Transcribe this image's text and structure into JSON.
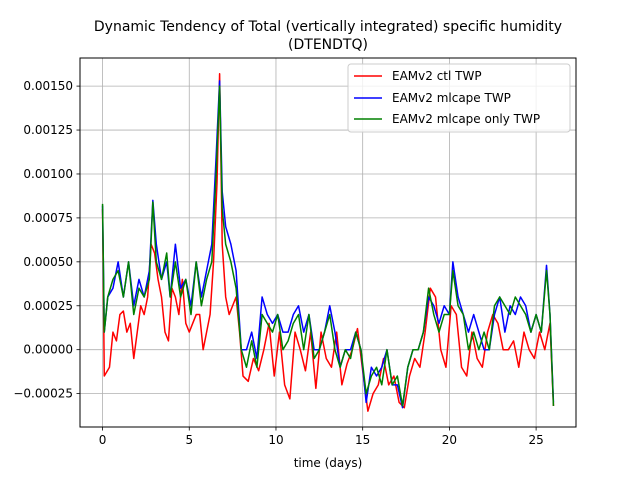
{
  "chart_data": {
    "type": "line",
    "title": "Dynamic Tendency of Total (vertically integrated) specific humidity",
    "subtitle": "(DTENDTQ)",
    "xlabel": "time (days)",
    "ylabel": "",
    "xlim": [
      -1.3,
      27.3
    ],
    "ylim": [
      -0.00044,
      0.00166
    ],
    "xticks": [
      0,
      5,
      10,
      15,
      20,
      25
    ],
    "xtick_labels": [
      "0",
      "5",
      "10",
      "15",
      "20",
      "25"
    ],
    "yticks": [
      -0.00025,
      0,
      0.00025,
      0.0005,
      0.00075,
      0.001,
      0.00125,
      0.0015
    ],
    "ytick_labels": [
      "−0.00025",
      "0.00000",
      "0.00025",
      "0.00050",
      "0.00075",
      "0.00100",
      "0.00125",
      "0.00150"
    ],
    "grid": true,
    "legend_position": "top-right",
    "series": [
      {
        "name": "EAMv2 ctl TWP",
        "color": "#ff0000",
        "points": [
          [
            0,
            0.0008
          ],
          [
            0.1,
            -0.00015
          ],
          [
            0.4,
            -0.0001
          ],
          [
            0.6,
            0.0001
          ],
          [
            0.8,
            5e-05
          ],
          [
            1.0,
            0.0002
          ],
          [
            1.2,
            0.00022
          ],
          [
            1.4,
            0.0001
          ],
          [
            1.6,
            0.00015
          ],
          [
            1.8,
            -5e-05
          ],
          [
            2.0,
            0.0001
          ],
          [
            2.2,
            0.00025
          ],
          [
            2.4,
            0.0002
          ],
          [
            2.6,
            0.0003
          ],
          [
            2.8,
            0.0006
          ],
          [
            3.0,
            0.00055
          ],
          [
            3.2,
            0.0004
          ],
          [
            3.4,
            0.0003
          ],
          [
            3.6,
            0.0001
          ],
          [
            3.8,
            5e-05
          ],
          [
            4.0,
            0.00035
          ],
          [
            4.2,
            0.0003
          ],
          [
            4.4,
            0.0002
          ],
          [
            4.6,
            0.0004
          ],
          [
            4.8,
            0.00015
          ],
          [
            5.0,
            0.0001
          ],
          [
            5.2,
            0.00015
          ],
          [
            5.4,
            0.0002
          ],
          [
            5.6,
            0.0002
          ],
          [
            5.8,
            0.0
          ],
          [
            6.0,
            0.0001
          ],
          [
            6.2,
            0.0002
          ],
          [
            6.4,
            0.0005
          ],
          [
            6.6,
            0.00095
          ],
          [
            6.75,
            0.00157
          ],
          [
            6.9,
            0.0006
          ],
          [
            7.1,
            0.0003
          ],
          [
            7.3,
            0.0002
          ],
          [
            7.5,
            0.00025
          ],
          [
            7.7,
            0.0003
          ],
          [
            7.9,
            0.0001
          ],
          [
            8.1,
            -0.00015
          ],
          [
            8.4,
            -0.00018
          ],
          [
            8.7,
            -5e-05
          ],
          [
            9.0,
            -0.00012
          ],
          [
            9.3,
            0.0
          ],
          [
            9.6,
            0.00015
          ],
          [
            9.9,
            -0.00015
          ],
          [
            10.2,
            0.0001
          ],
          [
            10.5,
            -0.0002
          ],
          [
            10.8,
            -0.00028
          ],
          [
            11.1,
            0.0001
          ],
          [
            11.4,
            0.0
          ],
          [
            11.7,
            -0.00012
          ],
          [
            12.0,
            0.0001
          ],
          [
            12.3,
            -0.00022
          ],
          [
            12.6,
            0.0001
          ],
          [
            12.9,
            -5e-05
          ],
          [
            13.2,
            -0.0001
          ],
          [
            13.5,
            0.0001
          ],
          [
            13.8,
            -0.0002
          ],
          [
            14.1,
            -8e-05
          ],
          [
            14.4,
            0.0
          ],
          [
            14.7,
            0.00012
          ],
          [
            15.0,
            -0.00012
          ],
          [
            15.3,
            -0.00035
          ],
          [
            15.6,
            -0.00025
          ],
          [
            15.9,
            -0.0002
          ],
          [
            16.2,
            -5e-05
          ],
          [
            16.5,
            -0.0002
          ],
          [
            16.8,
            -0.00015
          ],
          [
            17.1,
            -0.0003
          ],
          [
            17.4,
            -0.00033
          ],
          [
            17.7,
            -0.00015
          ],
          [
            18.0,
            -5e-05
          ],
          [
            18.3,
            -0.0001
          ],
          [
            18.6,
            0.0001
          ],
          [
            18.9,
            0.00035
          ],
          [
            19.2,
            0.0003
          ],
          [
            19.5,
            0.0
          ],
          [
            19.8,
            -0.0001
          ],
          [
            20.1,
            0.00025
          ],
          [
            20.4,
            0.0002
          ],
          [
            20.7,
            -0.0001
          ],
          [
            21.0,
            -0.00015
          ],
          [
            21.3,
            0.0001
          ],
          [
            21.6,
            -5e-05
          ],
          [
            21.9,
            -0.0001
          ],
          [
            22.2,
            0.0001
          ],
          [
            22.5,
            0.0002
          ],
          [
            22.8,
            0.00015
          ],
          [
            23.1,
            0.0
          ],
          [
            23.4,
            0.0
          ],
          [
            23.7,
            5e-05
          ],
          [
            24.0,
            -0.0001
          ],
          [
            24.3,
            0.0001
          ],
          [
            24.6,
            0.0
          ],
          [
            24.9,
            -5e-05
          ],
          [
            25.2,
            0.0001
          ],
          [
            25.5,
            0.0
          ],
          [
            25.8,
            0.00015
          ],
          [
            26.0,
            -0.00032
          ]
        ]
      },
      {
        "name": "EAMv2 mlcape TWP",
        "color": "#0000ff",
        "points": [
          [
            0,
            0.00082
          ],
          [
            0.1,
            0.0001
          ],
          [
            0.3,
            0.0003
          ],
          [
            0.6,
            0.00035
          ],
          [
            0.9,
            0.0005
          ],
          [
            1.2,
            0.0003
          ],
          [
            1.5,
            0.0005
          ],
          [
            1.8,
            0.00025
          ],
          [
            2.1,
            0.0004
          ],
          [
            2.4,
            0.0003
          ],
          [
            2.7,
            0.00045
          ],
          [
            2.9,
            0.00085
          ],
          [
            3.1,
            0.0006
          ],
          [
            3.4,
            0.0004
          ],
          [
            3.7,
            0.0005
          ],
          [
            3.9,
            0.0003
          ],
          [
            4.2,
            0.0006
          ],
          [
            4.5,
            0.00035
          ],
          [
            4.8,
            0.0004
          ],
          [
            5.1,
            0.00025
          ],
          [
            5.4,
            0.0005
          ],
          [
            5.7,
            0.0003
          ],
          [
            6.0,
            0.00045
          ],
          [
            6.3,
            0.0006
          ],
          [
            6.55,
            0.0011
          ],
          [
            6.75,
            0.00153
          ],
          [
            6.9,
            0.0009
          ],
          [
            7.1,
            0.0007
          ],
          [
            7.4,
            0.0006
          ],
          [
            7.7,
            0.00045
          ],
          [
            8.0,
            0.0
          ],
          [
            8.3,
            0.0
          ],
          [
            8.6,
            0.0001
          ],
          [
            8.9,
            -5e-05
          ],
          [
            9.2,
            0.0003
          ],
          [
            9.5,
            0.0002
          ],
          [
            9.8,
            0.00015
          ],
          [
            10.1,
            0.0002
          ],
          [
            10.4,
            0.0001
          ],
          [
            10.7,
            0.0001
          ],
          [
            11.0,
            0.0002
          ],
          [
            11.3,
            0.00025
          ],
          [
            11.6,
            0.0001
          ],
          [
            11.9,
            0.0002
          ],
          [
            12.2,
            0.0
          ],
          [
            12.5,
            0.0
          ],
          [
            12.8,
            0.0001
          ],
          [
            13.1,
            0.00025
          ],
          [
            13.4,
            0.0001
          ],
          [
            13.7,
            -0.0001
          ],
          [
            14.0,
            0.0
          ],
          [
            14.3,
            0.0
          ],
          [
            14.6,
            0.0001
          ],
          [
            14.9,
            0.0
          ],
          [
            15.2,
            -0.0003
          ],
          [
            15.5,
            -0.0001
          ],
          [
            15.8,
            -0.00015
          ],
          [
            16.1,
            -0.0001
          ],
          [
            16.4,
            0.0
          ],
          [
            16.7,
            -0.0002
          ],
          [
            17.0,
            -0.0002
          ],
          [
            17.3,
            -0.00033
          ],
          [
            17.6,
            -0.0001
          ],
          [
            17.9,
            0.0
          ],
          [
            18.2,
            0.0
          ],
          [
            18.5,
            0.0001
          ],
          [
            18.8,
            0.0003
          ],
          [
            19.1,
            0.00025
          ],
          [
            19.4,
            0.00015
          ],
          [
            19.7,
            0.00025
          ],
          [
            20.0,
            0.0002
          ],
          [
            20.2,
            0.0005
          ],
          [
            20.5,
            0.0003
          ],
          [
            20.8,
            0.0002
          ],
          [
            21.1,
            0.0001
          ],
          [
            21.4,
            0.0002
          ],
          [
            21.7,
            0.0001
          ],
          [
            22.0,
            0.0
          ],
          [
            22.3,
            0.0
          ],
          [
            22.6,
            0.0002
          ],
          [
            22.9,
            0.0003
          ],
          [
            23.2,
            0.0001
          ],
          [
            23.5,
            0.00025
          ],
          [
            23.8,
            0.0002
          ],
          [
            24.1,
            0.0003
          ],
          [
            24.4,
            0.00025
          ],
          [
            24.7,
            0.0001
          ],
          [
            25.0,
            0.0002
          ],
          [
            25.3,
            0.0001
          ],
          [
            25.6,
            0.00048
          ],
          [
            25.8,
            0.0002
          ],
          [
            26.0,
            -0.0003
          ]
        ]
      },
      {
        "name": "EAMv2 mlcape only TWP",
        "color": "#008000",
        "points": [
          [
            0,
            0.00083
          ],
          [
            0.1,
            0.0001
          ],
          [
            0.3,
            0.0003
          ],
          [
            0.6,
            0.0004
          ],
          [
            0.9,
            0.00045
          ],
          [
            1.2,
            0.0003
          ],
          [
            1.5,
            0.0005
          ],
          [
            1.8,
            0.0002
          ],
          [
            2.1,
            0.00035
          ],
          [
            2.4,
            0.0003
          ],
          [
            2.7,
            0.0004
          ],
          [
            2.9,
            0.00084
          ],
          [
            3.1,
            0.0005
          ],
          [
            3.4,
            0.0004
          ],
          [
            3.7,
            0.00055
          ],
          [
            3.9,
            0.0003
          ],
          [
            4.2,
            0.0005
          ],
          [
            4.5,
            0.0003
          ],
          [
            4.8,
            0.0004
          ],
          [
            5.1,
            0.0002
          ],
          [
            5.4,
            0.0005
          ],
          [
            5.7,
            0.00025
          ],
          [
            6.0,
            0.0004
          ],
          [
            6.3,
            0.0005
          ],
          [
            6.55,
            0.001
          ],
          [
            6.75,
            0.0015
          ],
          [
            6.9,
            0.0008
          ],
          [
            7.1,
            0.0006
          ],
          [
            7.4,
            0.0005
          ],
          [
            7.7,
            0.00035
          ],
          [
            8.0,
            0.0
          ],
          [
            8.3,
            -0.0001
          ],
          [
            8.6,
            5e-05
          ],
          [
            8.9,
            -0.0001
          ],
          [
            9.2,
            0.0002
          ],
          [
            9.5,
            0.00015
          ],
          [
            9.8,
            0.0001
          ],
          [
            10.1,
            0.0002
          ],
          [
            10.4,
            0.0
          ],
          [
            10.7,
            5e-05
          ],
          [
            11.0,
            0.00015
          ],
          [
            11.3,
            0.0002
          ],
          [
            11.6,
            0.0
          ],
          [
            11.9,
            0.0002
          ],
          [
            12.2,
            -5e-05
          ],
          [
            12.5,
            0.0
          ],
          [
            12.8,
            0.0001
          ],
          [
            13.1,
            0.0002
          ],
          [
            13.4,
            0.0
          ],
          [
            13.7,
            -0.0001
          ],
          [
            14.0,
            0.0
          ],
          [
            14.3,
            -5e-05
          ],
          [
            14.6,
            0.0001
          ],
          [
            14.9,
            0.0
          ],
          [
            15.2,
            -0.00025
          ],
          [
            15.5,
            -0.00015
          ],
          [
            15.8,
            -0.0001
          ],
          [
            16.1,
            -0.0002
          ],
          [
            16.4,
            0.0
          ],
          [
            16.7,
            -0.0002
          ],
          [
            17.0,
            -0.00015
          ],
          [
            17.3,
            -0.00032
          ],
          [
            17.6,
            -0.0001
          ],
          [
            17.9,
            0.0
          ],
          [
            18.2,
            0.0
          ],
          [
            18.5,
            0.0001
          ],
          [
            18.8,
            0.00035
          ],
          [
            19.1,
            0.0002
          ],
          [
            19.4,
            0.0001
          ],
          [
            19.7,
            0.0002
          ],
          [
            20.0,
            0.0002
          ],
          [
            20.2,
            0.00045
          ],
          [
            20.5,
            0.00025
          ],
          [
            20.8,
            0.0002
          ],
          [
            21.1,
            0.0
          ],
          [
            21.4,
            0.0001
          ],
          [
            21.7,
            0.0
          ],
          [
            22.0,
            0.0001
          ],
          [
            22.3,
            0.0
          ],
          [
            22.6,
            0.00025
          ],
          [
            22.9,
            0.0003
          ],
          [
            23.2,
            0.00025
          ],
          [
            23.5,
            0.0002
          ],
          [
            23.8,
            0.0003
          ],
          [
            24.1,
            0.00025
          ],
          [
            24.4,
            0.0002
          ],
          [
            24.7,
            0.0001
          ],
          [
            25.0,
            0.0002
          ],
          [
            25.3,
            0.0001
          ],
          [
            25.6,
            0.00045
          ],
          [
            25.8,
            0.0002
          ],
          [
            26.0,
            -0.00032
          ]
        ]
      }
    ]
  }
}
